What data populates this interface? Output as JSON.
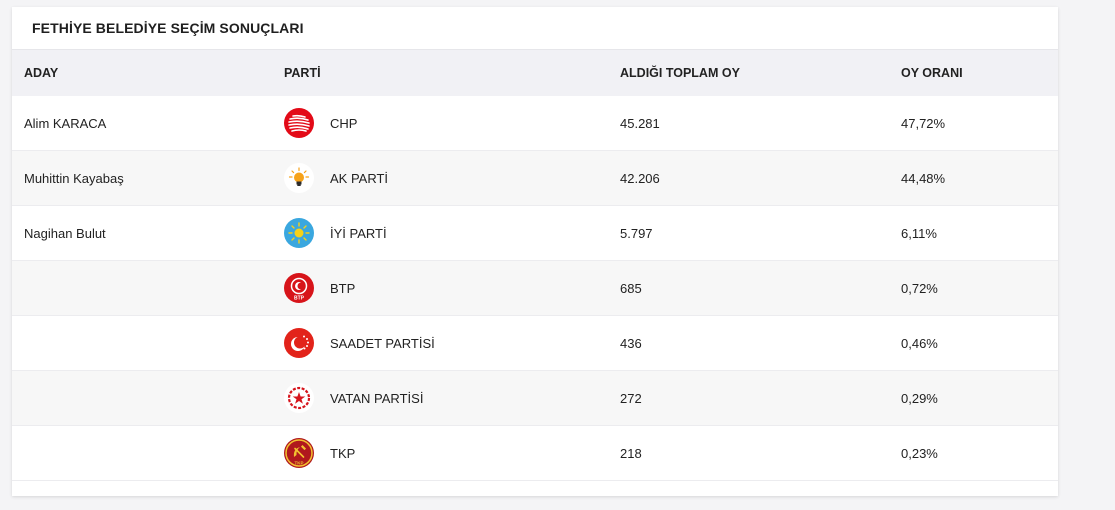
{
  "title": "FETHİYE BELEDİYE SEÇİM SONUÇLARI",
  "headers": {
    "candidate": "ADAY",
    "party": "PARTİ",
    "total_votes": "ALDIĞI TOPLAM OY",
    "vote_rate": "OY ORANI"
  },
  "rows": [
    {
      "candidate": "Alim KARACA",
      "party": "CHP",
      "votes": "45.281",
      "rate": "47,72%",
      "logo": "chp-logo-icon",
      "logo_color": "#e30a17"
    },
    {
      "candidate": "Muhittin Kayabaş",
      "party": "AK PARTİ",
      "votes": "42.206",
      "rate": "44,48%",
      "logo": "akp-bulb-logo-icon",
      "logo_color": "#f6a21a"
    },
    {
      "candidate": "Nagihan Bulut",
      "party": "İYİ PARTİ",
      "votes": "5.797",
      "rate": "6,11%",
      "logo": "iyi-sun-logo-icon",
      "logo_color": "#3aa7df"
    },
    {
      "candidate": "",
      "party": "BTP",
      "votes": "685",
      "rate": "0,72%",
      "logo": "btp-logo-icon",
      "logo_color": "#d7141a",
      "logo_text": "BTP"
    },
    {
      "candidate": "",
      "party": "SAADET PARTİSİ",
      "votes": "436",
      "rate": "0,46%",
      "logo": "saadet-crescent-logo-icon",
      "logo_color": "#e2231a"
    },
    {
      "candidate": "",
      "party": "VATAN PARTİSİ",
      "votes": "272",
      "rate": "0,29%",
      "logo": "vatan-star-logo-icon",
      "logo_color": "#d6141c"
    },
    {
      "candidate": "",
      "party": "TKP",
      "votes": "218",
      "rate": "0,23%",
      "logo": "tkp-hammer-sickle-logo-icon",
      "logo_color": "#b0181d",
      "logo_text": "TKP"
    }
  ]
}
